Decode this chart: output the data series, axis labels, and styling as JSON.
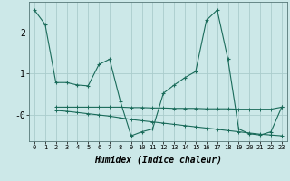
{
  "xlabel": "Humidex (Indice chaleur)",
  "background_color": "#cce8e8",
  "grid_color": "#aacccc",
  "line_color": "#1a6b5a",
  "x_ticks": [
    0,
    1,
    2,
    3,
    4,
    5,
    6,
    7,
    8,
    9,
    10,
    11,
    12,
    13,
    14,
    15,
    16,
    17,
    18,
    19,
    20,
    21,
    22,
    23
  ],
  "ylim": [
    -0.65,
    2.75
  ],
  "yticks": [
    0,
    1,
    2
  ],
  "ytick_labels": [
    "-0",
    "1",
    "2"
  ],
  "curve1_x": [
    0,
    1,
    2,
    3,
    4,
    5,
    6,
    7,
    8,
    9,
    10,
    11,
    12,
    13,
    14,
    15,
    16,
    17,
    18,
    19,
    20,
    21,
    22,
    23
  ],
  "curve1_y": [
    2.55,
    2.2,
    0.78,
    0.78,
    0.72,
    0.7,
    1.22,
    1.35,
    0.32,
    -0.52,
    -0.42,
    -0.35,
    0.52,
    0.72,
    0.9,
    1.05,
    2.3,
    2.55,
    1.35,
    -0.35,
    -0.47,
    -0.5,
    -0.42,
    0.18
  ],
  "curve2_x": [
    2,
    3,
    4,
    5,
    6,
    7,
    8,
    9,
    10,
    11,
    12,
    13,
    14,
    15,
    16,
    17,
    18,
    19,
    20,
    21,
    22,
    23
  ],
  "curve2_y": [
    0.18,
    0.18,
    0.18,
    0.18,
    0.18,
    0.18,
    0.18,
    0.17,
    0.17,
    0.16,
    0.16,
    0.15,
    0.15,
    0.15,
    0.14,
    0.14,
    0.14,
    0.13,
    0.13,
    0.13,
    0.13,
    0.18
  ],
  "curve3_x": [
    2,
    3,
    4,
    5,
    6,
    7,
    8,
    9,
    10,
    11,
    12,
    13,
    14,
    15,
    16,
    17,
    18,
    19,
    20,
    21,
    22,
    23
  ],
  "curve3_y": [
    0.1,
    0.08,
    0.05,
    0.02,
    -0.01,
    -0.04,
    -0.08,
    -0.12,
    -0.15,
    -0.18,
    -0.21,
    -0.24,
    -0.27,
    -0.3,
    -0.33,
    -0.36,
    -0.39,
    -0.42,
    -0.45,
    -0.48,
    -0.5,
    -0.52
  ]
}
